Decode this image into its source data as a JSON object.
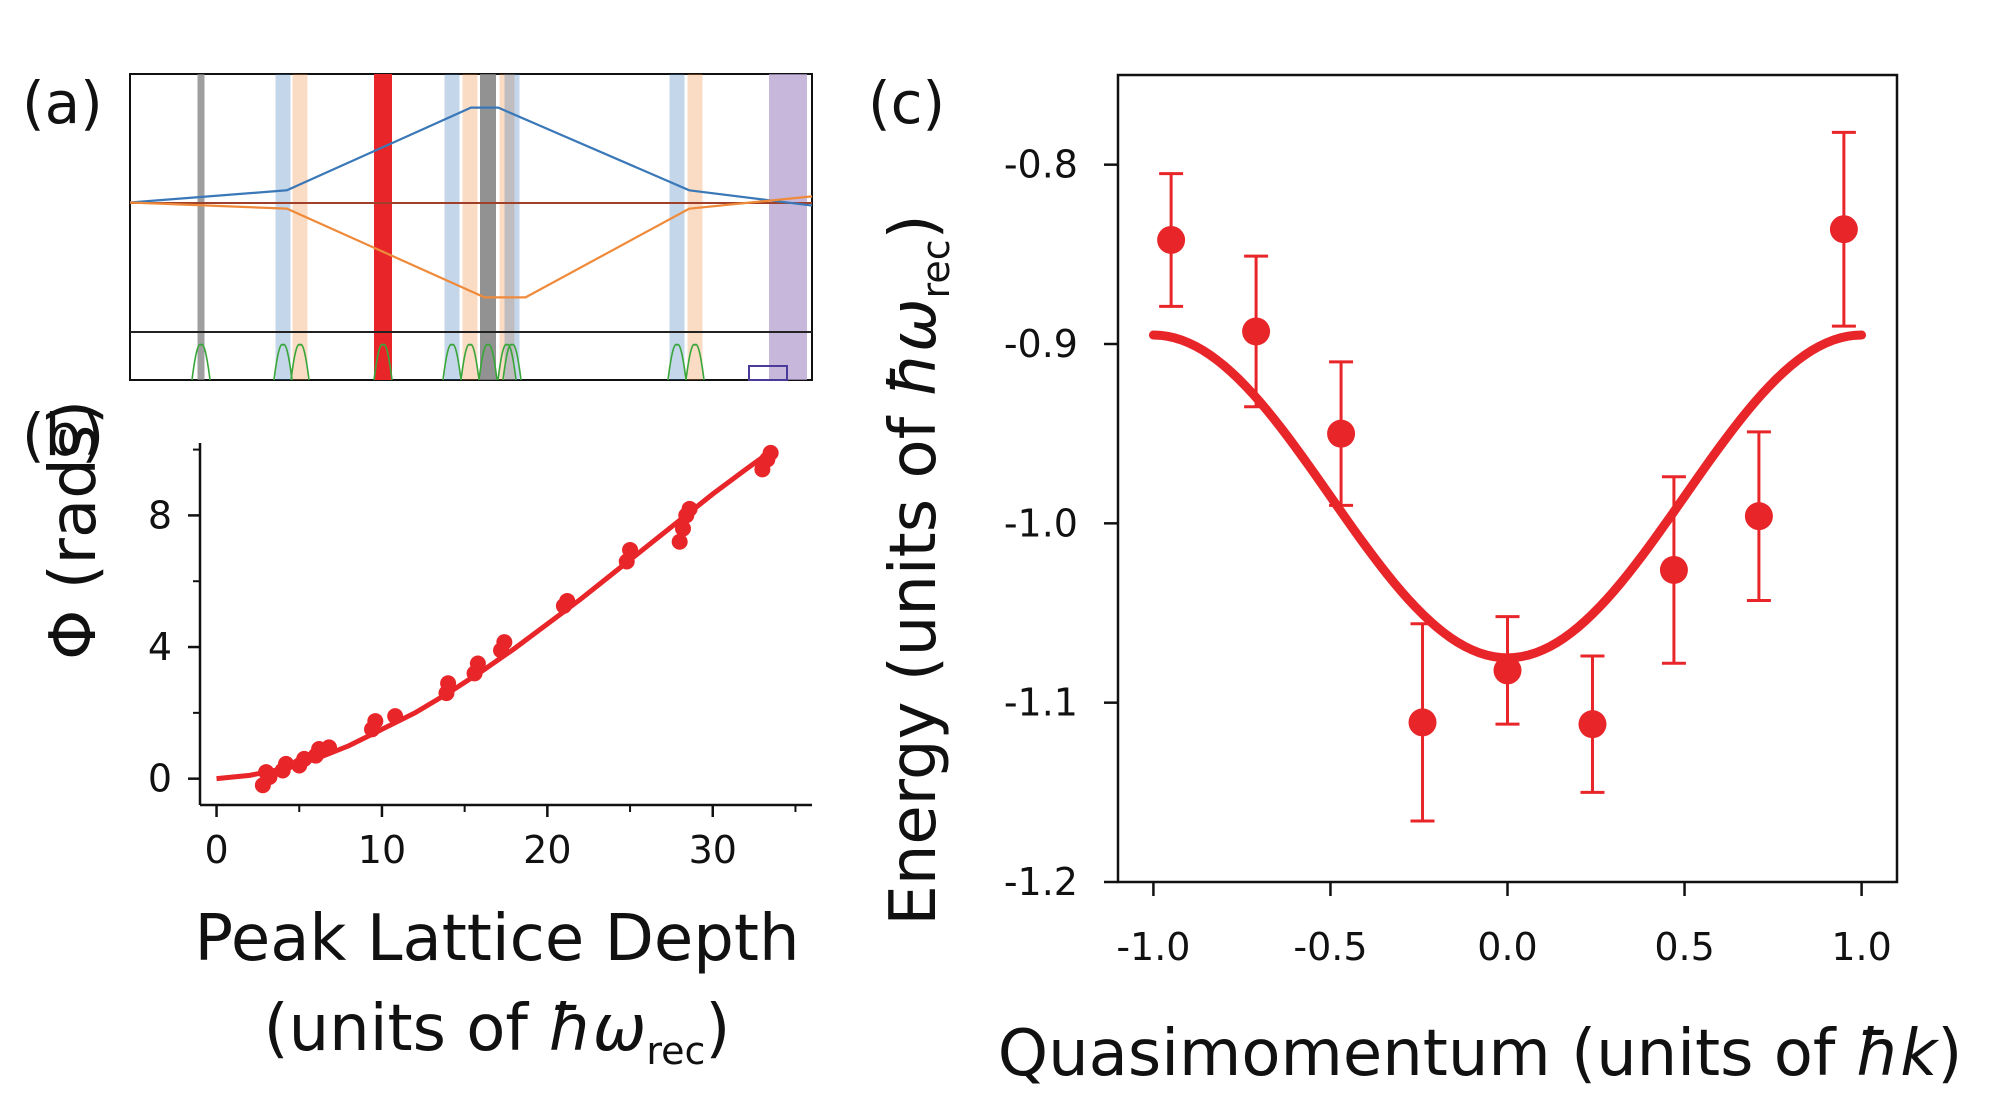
{
  "chart_data": [
    {
      "panel": "(a)",
      "type": "diagram",
      "title": "",
      "curves": {
        "blue": [
          [
            0,
            0.42
          ],
          [
            0.23,
            0.38
          ],
          [
            0.5,
            0.11
          ],
          [
            0.54,
            0.11
          ],
          [
            0.82,
            0.38
          ],
          [
            1.0,
            0.43
          ]
        ],
        "orange": [
          [
            0,
            0.42
          ],
          [
            0.23,
            0.44
          ],
          [
            0.52,
            0.73
          ],
          [
            0.58,
            0.73
          ],
          [
            0.82,
            0.44
          ],
          [
            1.0,
            0.4
          ]
        ]
      },
      "colors": {
        "blue": "#3a78b8",
        "orange": "#ef8a3a",
        "red": "#e8262a",
        "gray": "#7f7f7f",
        "purple": "#b49fcf",
        "green": "#3aa63a"
      }
    },
    {
      "panel": "(b)",
      "type": "scatter",
      "title": "",
      "xlabel": "Peak Lattice Depth",
      "xlabel_units_prefix": "(units of ",
      "xlabel_units_symbol": "ħω",
      "xlabel_units_sub": "rec",
      "xlabel_units_suffix": ")",
      "ylabel": "Φ (rads)",
      "xlim": [
        -1,
        36
      ],
      "ylim": [
        -0.8,
        10.2
      ],
      "xticks": [
        0,
        10,
        20,
        30
      ],
      "yticks": [
        0,
        4,
        8
      ],
      "points": [
        [
          2.8,
          -0.2
        ],
        [
          3.0,
          0.2
        ],
        [
          3.2,
          0.05
        ],
        [
          4.0,
          0.25
        ],
        [
          4.2,
          0.45
        ],
        [
          5.0,
          0.4
        ],
        [
          5.3,
          0.6
        ],
        [
          6.0,
          0.7
        ],
        [
          6.2,
          0.9
        ],
        [
          6.8,
          0.95
        ],
        [
          9.4,
          1.5
        ],
        [
          9.6,
          1.75
        ],
        [
          10.8,
          1.9
        ],
        [
          13.9,
          2.6
        ],
        [
          14.0,
          2.9
        ],
        [
          15.6,
          3.2
        ],
        [
          15.8,
          3.5
        ],
        [
          17.2,
          3.9
        ],
        [
          17.4,
          4.15
        ],
        [
          21.0,
          5.25
        ],
        [
          21.2,
          5.4
        ],
        [
          24.8,
          6.6
        ],
        [
          25.0,
          6.95
        ],
        [
          28.0,
          7.2
        ],
        [
          28.2,
          7.6
        ],
        [
          28.4,
          8.0
        ],
        [
          28.6,
          8.2
        ],
        [
          33.0,
          9.4
        ],
        [
          33.3,
          9.7
        ],
        [
          33.5,
          9.9
        ]
      ],
      "fit": [
        [
          0,
          0
        ],
        [
          2,
          0.1
        ],
        [
          4,
          0.3
        ],
        [
          6,
          0.6
        ],
        [
          8,
          1.0
        ],
        [
          10,
          1.5
        ],
        [
          12,
          2.0
        ],
        [
          14,
          2.6
        ],
        [
          16,
          3.25
        ],
        [
          18,
          3.95
        ],
        [
          20,
          4.7
        ],
        [
          22,
          5.45
        ],
        [
          24,
          6.25
        ],
        [
          26,
          7.05
        ],
        [
          28,
          7.85
        ],
        [
          30,
          8.65
        ],
        [
          32,
          9.4
        ],
        [
          33.8,
          10.05
        ]
      ],
      "color": "#e8262a"
    },
    {
      "panel": "(c)",
      "type": "scatter",
      "title": "",
      "xlabel_prefix": "Quasimomentum (units of ",
      "xlabel_symbol": "ħk",
      "xlabel_suffix": ")",
      "ylabel_prefix": "Energy (units of ",
      "ylabel_symbol": "ħω",
      "ylabel_sub": "rec",
      "ylabel_suffix": ")",
      "xlim": [
        -1.1,
        1.1
      ],
      "ylim": [
        -1.2,
        -0.75
      ],
      "xticks": [
        -1.0,
        -0.5,
        0.0,
        0.5,
        1.0
      ],
      "xtick_labels": [
        "-1.0",
        "-0.5",
        "0.0",
        "0.5",
        "1.0"
      ],
      "yticks": [
        -0.8,
        -0.9,
        -1.0,
        -1.1,
        -1.2
      ],
      "ytick_labels": [
        "-0.8",
        "-0.9",
        "-1.0",
        "-1.1",
        "-1.2"
      ],
      "points": [
        {
          "x": -0.95,
          "y": -0.842,
          "err": 0.037
        },
        {
          "x": -0.71,
          "y": -0.893,
          "err": 0.042
        },
        {
          "x": -0.47,
          "y": -0.95,
          "err": 0.04
        },
        {
          "x": -0.24,
          "y": -1.111,
          "err": 0.055
        },
        {
          "x": 0.0,
          "y": -1.082,
          "err": 0.03
        },
        {
          "x": 0.24,
          "y": -1.112,
          "err": 0.038
        },
        {
          "x": 0.47,
          "y": -1.026,
          "err": 0.052
        },
        {
          "x": 0.71,
          "y": -0.996,
          "err": 0.047
        },
        {
          "x": 0.95,
          "y": -0.836,
          "err": 0.054
        }
      ],
      "fit": {
        "model": "cosine",
        "offset": -0.985,
        "amplitude": 0.09,
        "xrange": [
          -1.0,
          1.0
        ]
      },
      "color": "#e8262a"
    }
  ]
}
